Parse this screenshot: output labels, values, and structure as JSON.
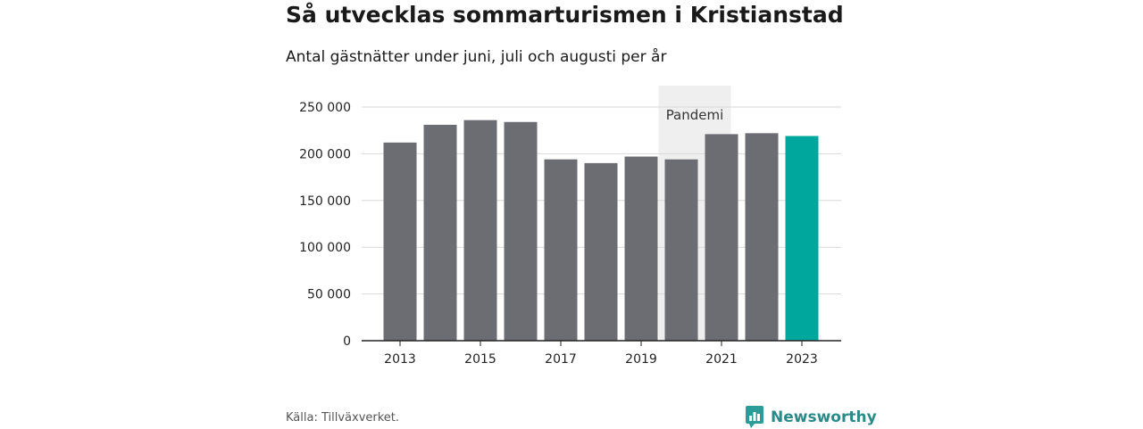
{
  "header": {
    "title": "Så utvecklas sommarturismen i Kristianstad",
    "subtitle": "Antal gästnätter under juni, juli och augusti per år"
  },
  "footer": {
    "source": "Källa: Tillväxverket.",
    "brand": "Newsworthy",
    "brand_icon": "bar-chart-logo-icon",
    "brand_color": "#2a9d99"
  },
  "colors": {
    "bar": "#6c6c73",
    "highlight": "#00a79d",
    "annotation_band": "#efefef",
    "grid": "#d9d9d9"
  },
  "chart_data": {
    "type": "bar",
    "categories": [
      "2013",
      "2014",
      "2015",
      "2016",
      "2017",
      "2018",
      "2019",
      "2020",
      "2021",
      "2022",
      "2023"
    ],
    "values": [
      212000,
      231000,
      236000,
      234000,
      194000,
      190000,
      197000,
      194000,
      221000,
      222000,
      219000
    ],
    "highlight_category": "2023",
    "x_tick_labels": [
      "2013",
      "2015",
      "2017",
      "2019",
      "2021",
      "2023"
    ],
    "y_ticks": [
      0,
      50000,
      100000,
      150000,
      200000,
      250000
    ],
    "y_tick_labels": [
      "0",
      "50 000",
      "100 000",
      "150 000",
      "200 000",
      "250 000"
    ],
    "ylim": [
      0,
      250000
    ],
    "grid": true,
    "legend": "none",
    "annotation": {
      "label": "Pandemi",
      "from_category": "2020",
      "to_category": "2021"
    }
  }
}
